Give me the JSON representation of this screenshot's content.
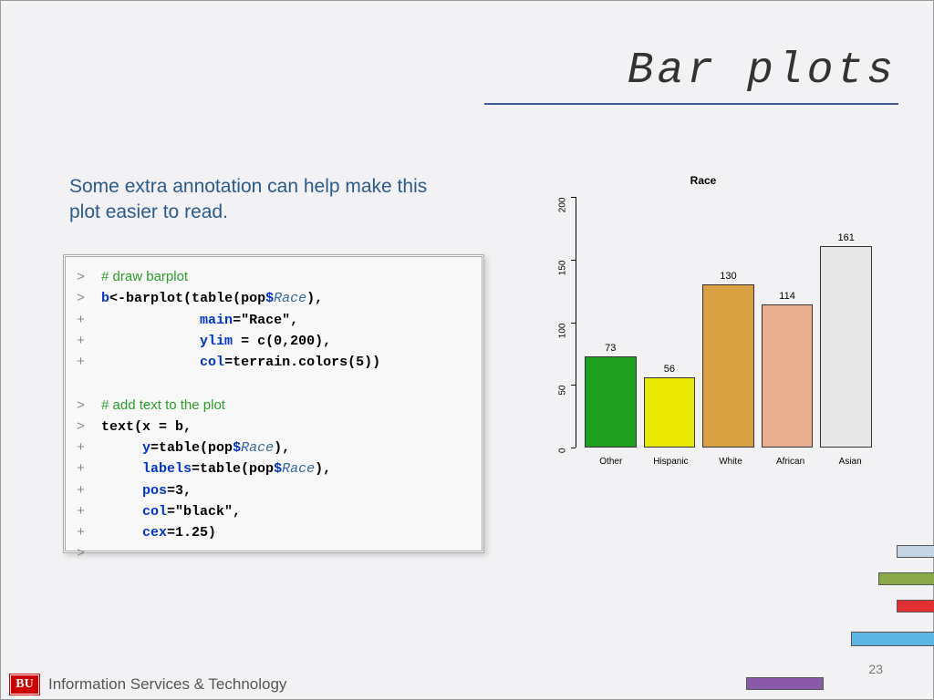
{
  "title": "Bar plots",
  "description": "Some extra annotation can help make this plot easier to read.",
  "code": {
    "comment1": "# draw barplot",
    "line1_b": "b",
    "line1_assign": "<-barplot(table(pop",
    "line1_dollar": "$",
    "line1_race": "Race",
    "line1_end": "),",
    "line2_arg": "main",
    "line2_val": "=\"Race\",",
    "line3_arg": "ylim",
    "line3_val": " = c(0,200),",
    "line4_arg": "col",
    "line4_val": "=terrain.colors(5))",
    "comment2": "# add text to the plot",
    "line5_fn": "text(x = b",
    "line5_end": ",",
    "line6_arg": "y",
    "line6_mid": "=table(pop",
    "line6_race": "Race",
    "line6_end": "),",
    "line7_arg": "labels",
    "line7_mid": "=table(pop",
    "line7_race": "Race",
    "line7_end": "),",
    "line8_arg": "pos",
    "line8_val": "=3,",
    "line9_arg": "col",
    "line9_val": "=\"black\",",
    "line10_arg": "cex",
    "line10_val": "=1.25)"
  },
  "chart": {
    "type": "bar",
    "title": "Race",
    "ylim": [
      0,
      200
    ],
    "yticks": [
      0,
      50,
      100,
      150,
      200
    ],
    "categories": [
      "Other",
      "Hispanic",
      "White",
      "African",
      "Asian"
    ],
    "values": [
      73,
      56,
      130,
      114,
      161
    ],
    "bar_colors": [
      "#1fa01f",
      "#e8e800",
      "#d8a040",
      "#e8b090",
      "#e8e8e8"
    ],
    "background": "#f2f2f4",
    "axis_color": "#000000",
    "value_fontsize": 11,
    "label_fontsize": 10
  },
  "footer": {
    "badge": "BU",
    "org": "Information Services & Technology"
  },
  "page_number": "23",
  "deco_colors": [
    "#c5d5e5",
    "#8aaa4a",
    "#e03030",
    "#5cb5e5",
    "#8a5aaa"
  ]
}
